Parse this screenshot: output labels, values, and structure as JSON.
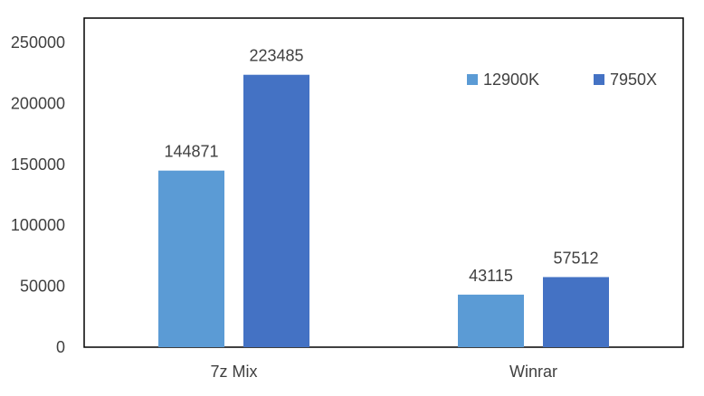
{
  "chart_data": {
    "type": "bar",
    "title": "",
    "xlabel": "",
    "ylabel": "",
    "categories": [
      "7z Mix",
      "Winrar"
    ],
    "series": [
      {
        "name": "12900K",
        "values": [
          144871,
          43115
        ],
        "color": "#5b9bd5"
      },
      {
        "name": "7950X",
        "values": [
          223485,
          57512
        ],
        "color": "#4472c4"
      }
    ],
    "ylim": [
      0,
      270000
    ],
    "yticks": [
      0,
      50000,
      100000,
      150000,
      200000,
      250000
    ],
    "grid": false,
    "data_labels": true,
    "legend_position": "top-right"
  }
}
